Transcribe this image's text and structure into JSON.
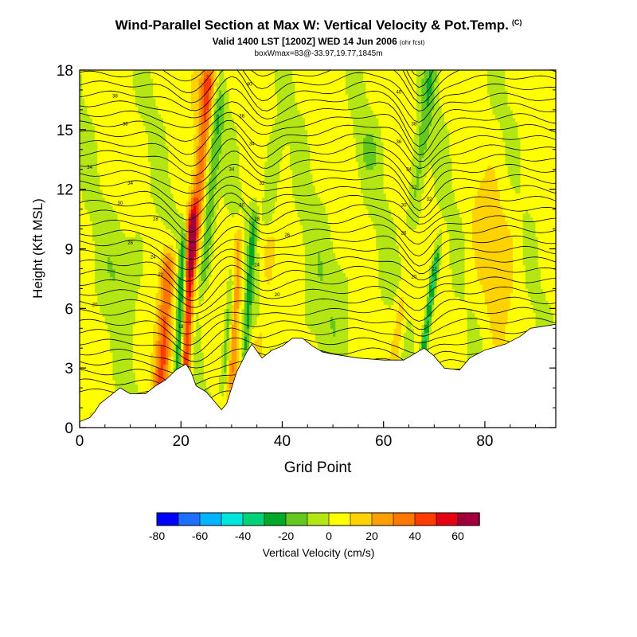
{
  "title": "Wind-Parallel Section at Max W: Vertical Velocity & Pot.Temp.",
  "title_mark": "(C)",
  "subtitle": "Valid 1400 LST [1200Z] WED 14 Jun 2006",
  "subtitle_tag": "(ohr fcst)",
  "subtitle2": "boxWmax=83@-33.97,19.77,1845m",
  "chart_data": {
    "type": "heatmap",
    "xlabel": "Grid Point",
    "ylabel": "Height (Kft MSL)",
    "xlim": [
      0,
      94
    ],
    "ylim": [
      0,
      18
    ],
    "x_ticks": [
      0,
      20,
      40,
      60,
      80
    ],
    "y_ticks": [
      0,
      3,
      6,
      9,
      12,
      15,
      18
    ],
    "colorbar": {
      "label": "Vertical Velocity (cm/s)",
      "tick_labels": [
        "-80",
        "-60",
        "-40",
        "-20",
        "0",
        "20",
        "40",
        "60"
      ],
      "range": [
        -80,
        70
      ],
      "colors": [
        "#0000ff",
        "#1e6eff",
        "#00b4ff",
        "#00e6dc",
        "#00d278",
        "#00aa28",
        "#64c81e",
        "#b4e614",
        "#ffff00",
        "#ffd200",
        "#ffa000",
        "#ff7800",
        "#ff3c00",
        "#e60014",
        "#a0003c"
      ]
    },
    "terrain_top_kft": [
      [
        0,
        0.3
      ],
      [
        2,
        0.5
      ],
      [
        3,
        0.8
      ],
      [
        4,
        1.2
      ],
      [
        6,
        1.6
      ],
      [
        8,
        2.0
      ],
      [
        10,
        1.7
      ],
      [
        13,
        1.7
      ],
      [
        15,
        2.1
      ],
      [
        17,
        2.4
      ],
      [
        19,
        2.9
      ],
      [
        21,
        3.2
      ],
      [
        22,
        2.8
      ],
      [
        23,
        2.1
      ],
      [
        25,
        1.8
      ],
      [
        27,
        1.2
      ],
      [
        28,
        0.9
      ],
      [
        29,
        1.2
      ],
      [
        30,
        2.0
      ],
      [
        31,
        2.8
      ],
      [
        33,
        3.8
      ],
      [
        34,
        4.2
      ],
      [
        36,
        3.5
      ],
      [
        38,
        3.9
      ],
      [
        40,
        4.1
      ],
      [
        42,
        4.5
      ],
      [
        44,
        4.5
      ],
      [
        46,
        4.1
      ],
      [
        48,
        3.8
      ],
      [
        50,
        3.7
      ],
      [
        55,
        3.5
      ],
      [
        60,
        3.4
      ],
      [
        64,
        3.4
      ],
      [
        66,
        3.7
      ],
      [
        68,
        4.0
      ],
      [
        70,
        3.6
      ],
      [
        72,
        3.0
      ],
      [
        75,
        2.9
      ],
      [
        77,
        3.5
      ],
      [
        80,
        3.9
      ],
      [
        84,
        4.2
      ],
      [
        87,
        4.6
      ],
      [
        89,
        5.0
      ],
      [
        94,
        5.2
      ]
    ],
    "contour_labels": [
      {
        "text": "40",
        "x": 63,
        "y": 16.9
      },
      {
        "text": "40",
        "x": 33.5,
        "y": 17.3
      },
      {
        "text": "38",
        "x": 7,
        "y": 16.7
      },
      {
        "text": "36",
        "x": 9,
        "y": 15.3
      },
      {
        "text": "38",
        "x": 32,
        "y": 15.7
      },
      {
        "text": "38",
        "x": 66,
        "y": 15.3
      },
      {
        "text": "36",
        "x": 63,
        "y": 14.4
      },
      {
        "text": "34",
        "x": 34,
        "y": 14.3
      },
      {
        "text": "34",
        "x": 2,
        "y": 13.1
      },
      {
        "text": "34",
        "x": 30,
        "y": 13.0
      },
      {
        "text": "34",
        "x": 65,
        "y": 13.0
      },
      {
        "text": "34",
        "x": 10,
        "y": 12.3
      },
      {
        "text": "32",
        "x": 36,
        "y": 12.3
      },
      {
        "text": "32",
        "x": 66,
        "y": 12.1
      },
      {
        "text": "32",
        "x": 69,
        "y": 11.5
      },
      {
        "text": "30",
        "x": 8,
        "y": 11.3
      },
      {
        "text": "30",
        "x": 32,
        "y": 11.2
      },
      {
        "text": "30",
        "x": 64,
        "y": 11.2
      },
      {
        "text": "28",
        "x": 15,
        "y": 10.5
      },
      {
        "text": "28",
        "x": 35,
        "y": 10.5
      },
      {
        "text": "26",
        "x": 41,
        "y": 9.7
      },
      {
        "text": "26",
        "x": 64,
        "y": 9.8
      },
      {
        "text": "26",
        "x": 10,
        "y": 9.3
      },
      {
        "text": "24",
        "x": 14.5,
        "y": 8.6
      },
      {
        "text": "24",
        "x": 35,
        "y": 8.2
      },
      {
        "text": "22",
        "x": 70,
        "y": 8.0
      },
      {
        "text": "22",
        "x": 16,
        "y": 7.7
      },
      {
        "text": "20",
        "x": 66,
        "y": 7.6
      },
      {
        "text": "20",
        "x": 39,
        "y": 6.7
      },
      {
        "text": "20",
        "x": 3,
        "y": 6.2
      },
      {
        "text": "18",
        "x": 20,
        "y": 5.1
      }
    ]
  }
}
